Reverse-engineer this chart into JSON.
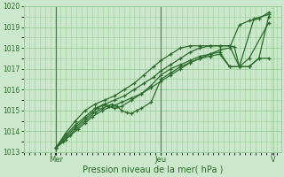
{
  "bg_color": "#cce8cc",
  "plot_bg_color": "#cce8cc",
  "grid_color": "#99cc99",
  "line_color": "#2d6a2d",
  "marker_color": "#2d6a2d",
  "ylim": [
    1013,
    1020
  ],
  "yticks": [
    1013,
    1014,
    1015,
    1016,
    1017,
    1018,
    1019,
    1020
  ],
  "xlabel": "Pression niveau de la mer( hPa )",
  "xlabel_color": "#2d6a2d",
  "tick_color": "#2d6a2d",
  "xtick_labels": [
    "Mer",
    "Jeu",
    "V"
  ],
  "vline_x": [
    0.13,
    0.56
  ],
  "vline_color": "#557755",
  "series": [
    {
      "x": [
        0.13,
        0.16,
        0.19,
        0.22,
        0.25,
        0.28,
        0.32,
        0.36,
        0.4,
        0.44,
        0.48,
        0.52,
        0.56,
        0.6,
        0.64,
        0.68,
        0.72,
        0.76,
        0.8,
        0.84,
        0.88,
        0.92,
        0.96,
        1.0
      ],
      "y": [
        1013.2,
        1013.5,
        1013.8,
        1014.1,
        1014.4,
        1014.7,
        1015.0,
        1015.2,
        1015.4,
        1015.6,
        1015.8,
        1016.1,
        1016.4,
        1016.7,
        1017.0,
        1017.3,
        1017.5,
        1017.7,
        1017.9,
        1018.0,
        1019.1,
        1019.3,
        1019.4,
        1019.7
      ]
    },
    {
      "x": [
        0.13,
        0.17,
        0.21,
        0.25,
        0.29,
        0.32,
        0.34,
        0.36,
        0.38,
        0.4,
        0.42,
        0.44,
        0.46,
        0.48,
        0.52,
        0.56,
        0.6,
        0.64,
        0.68,
        0.72,
        0.76,
        0.8,
        0.84,
        0.88,
        0.94,
        1.0
      ],
      "y": [
        1013.2,
        1013.6,
        1014.1,
        1014.5,
        1014.9,
        1015.1,
        1015.2,
        1015.3,
        1015.2,
        1015.0,
        1014.9,
        1014.85,
        1015.0,
        1015.1,
        1015.4,
        1016.5,
        1016.8,
        1017.1,
        1017.3,
        1017.5,
        1017.6,
        1017.7,
        1017.1,
        1017.1,
        1019.4,
        1019.6
      ]
    },
    {
      "x": [
        0.13,
        0.17,
        0.21,
        0.25,
        0.28,
        0.3,
        0.32,
        0.33,
        0.35,
        0.37,
        0.4,
        0.44,
        0.48,
        0.52,
        0.56,
        0.6,
        0.64,
        0.68,
        0.72,
        0.76,
        0.8,
        0.84,
        0.88,
        0.92,
        1.0
      ],
      "y": [
        1013.2,
        1013.7,
        1014.2,
        1014.6,
        1014.9,
        1015.1,
        1015.25,
        1015.3,
        1015.2,
        1015.1,
        1015.2,
        1015.5,
        1015.8,
        1016.2,
        1016.7,
        1017.0,
        1017.2,
        1017.4,
        1017.6,
        1017.7,
        1017.8,
        1017.1,
        1017.1,
        1017.5,
        1019.2
      ]
    },
    {
      "x": [
        0.13,
        0.17,
        0.21,
        0.25,
        0.29,
        0.33,
        0.37,
        0.41,
        0.45,
        0.49,
        0.53,
        0.56,
        0.6,
        0.64,
        0.68,
        0.72,
        0.76,
        0.8,
        0.84,
        0.88,
        0.92,
        0.96,
        1.0
      ],
      "y": [
        1013.2,
        1013.8,
        1014.3,
        1014.7,
        1015.1,
        1015.3,
        1015.5,
        1015.7,
        1016.0,
        1016.3,
        1016.6,
        1016.9,
        1017.2,
        1017.5,
        1017.8,
        1018.0,
        1018.1,
        1018.1,
        1018.1,
        1017.1,
        1017.1,
        1017.5,
        1017.5
      ]
    },
    {
      "x": [
        0.13,
        0.17,
        0.21,
        0.25,
        0.29,
        0.33,
        0.37,
        0.41,
        0.45,
        0.49,
        0.53,
        0.56,
        0.6,
        0.64,
        0.68,
        0.72,
        0.76,
        0.8,
        0.84,
        0.86,
        0.88,
        0.92,
        0.96,
        1.0
      ],
      "y": [
        1013.2,
        1013.9,
        1014.5,
        1015.0,
        1015.3,
        1015.5,
        1015.7,
        1016.0,
        1016.3,
        1016.7,
        1017.1,
        1017.4,
        1017.7,
        1018.0,
        1018.1,
        1018.1,
        1018.1,
        1018.1,
        1018.1,
        1018.05,
        1017.1,
        1017.1,
        1017.5,
        1019.5
      ]
    }
  ]
}
